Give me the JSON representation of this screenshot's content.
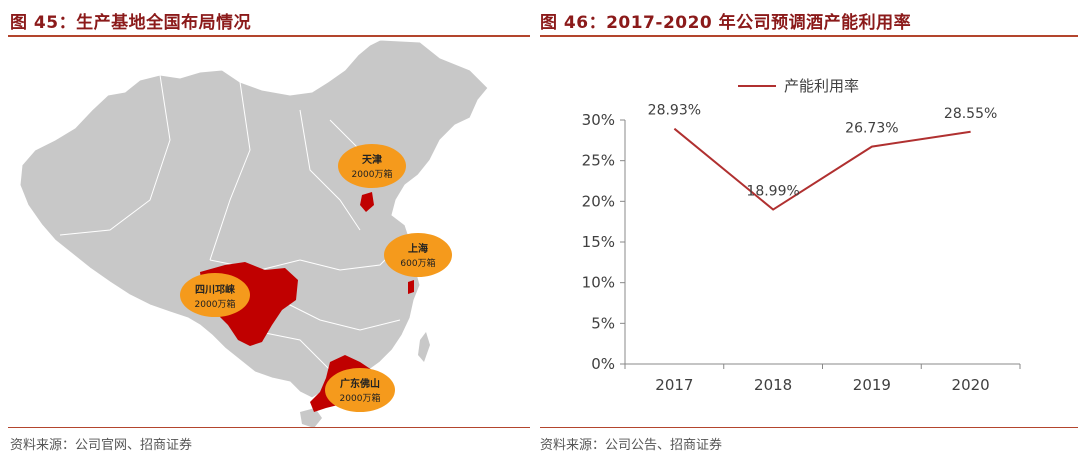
{
  "left_figure": {
    "title": "图 45：生产基地全国布局情况",
    "source": "资料来源：公司官网、招商证券",
    "bases": [
      {
        "name": "天津",
        "capacity": "2000万箱"
      },
      {
        "name": "上海",
        "capacity": "600万箱"
      },
      {
        "name": "四川邛崃",
        "capacity": "2000万箱"
      },
      {
        "name": "广东佛山",
        "capacity": "2000万箱"
      }
    ],
    "colors": {
      "map_fill": "#c8c8c8",
      "highlight": "#c00000",
      "bubble": "#f59a1c"
    }
  },
  "right_figure": {
    "title": "图 46：2017-2020 年公司预调酒产能利用率",
    "source": "资料来源：公司公告、招商证券"
  },
  "chart_data": {
    "type": "line",
    "x": [
      "2017",
      "2018",
      "2019",
      "2020"
    ],
    "series": [
      {
        "name": "产能利用率",
        "values": [
          28.93,
          18.99,
          26.73,
          28.55
        ],
        "color": "#b03030",
        "labels": [
          "28.93%",
          "18.99%",
          "26.73%",
          "28.55%"
        ]
      }
    ],
    "ylim": [
      0,
      30
    ],
    "yticks": [
      0,
      5,
      10,
      15,
      20,
      25,
      30
    ],
    "ytick_labels": [
      "0%",
      "5%",
      "10%",
      "15%",
      "20%",
      "25%",
      "30%"
    ],
    "legend_position": "top",
    "grid": false
  }
}
